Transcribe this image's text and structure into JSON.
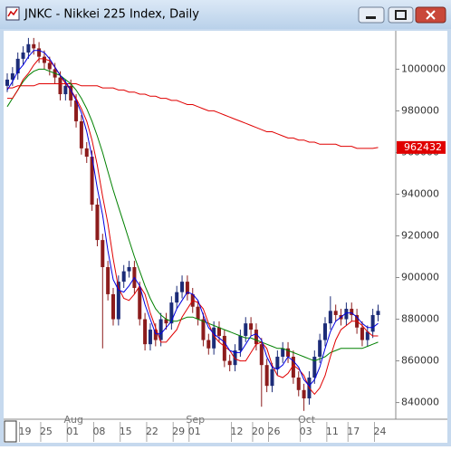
{
  "chart_data": {
    "type": "candlestick",
    "title": "JNKC - Nikkei 225 Index, Daily",
    "categories": [
      null,
      null,
      null,
      "19",
      null,
      null,
      null,
      "25",
      null,
      null,
      null,
      null,
      "01",
      null,
      null,
      null,
      null,
      "08",
      null,
      null,
      null,
      null,
      "15",
      null,
      null,
      null,
      null,
      "22",
      null,
      null,
      null,
      null,
      "29",
      null,
      null,
      "01",
      null,
      null,
      null,
      null,
      null,
      null,
      null,
      "12",
      null,
      null,
      null,
      "20",
      null,
      null,
      "26",
      null,
      null,
      null,
      null,
      null,
      "03",
      null,
      null,
      null,
      null,
      "11",
      null,
      null,
      null,
      "17",
      null,
      null,
      null,
      null,
      "24"
    ],
    "months": [
      null,
      null,
      null,
      null,
      null,
      null,
      null,
      null,
      null,
      null,
      null,
      null,
      "Aug",
      null,
      null,
      null,
      null,
      null,
      null,
      null,
      null,
      null,
      null,
      null,
      null,
      null,
      null,
      null,
      null,
      null,
      null,
      null,
      null,
      null,
      null,
      "Sep",
      null,
      null,
      null,
      null,
      null,
      null,
      null,
      null,
      null,
      null,
      null,
      null,
      null,
      null,
      null,
      null,
      null,
      null,
      null,
      null,
      "Oct",
      null,
      null,
      null,
      null,
      null,
      null,
      null,
      null,
      null,
      null,
      null,
      null,
      null,
      null
    ],
    "open": [
      992000,
      995000,
      998000,
      1005000,
      1008000,
      1012000,
      1010000,
      1006000,
      1003000,
      1000000,
      996000,
      988000,
      992000,
      985000,
      975000,
      962000,
      958000,
      935000,
      918000,
      905000,
      892000,
      880000,
      898000,
      903000,
      905000,
      895000,
      880000,
      868000,
      875000,
      870000,
      880000,
      878000,
      888000,
      893000,
      898000,
      892000,
      886000,
      880000,
      870000,
      866000,
      876000,
      872000,
      860000,
      858000,
      865000,
      872000,
      878000,
      875000,
      868000,
      858000,
      848000,
      856000,
      862000,
      866000,
      862000,
      852000,
      846000,
      842000,
      852000,
      862000,
      870000,
      878000,
      884000,
      882000,
      880000,
      885000,
      882000,
      876000,
      870000,
      874000,
      882000
    ],
    "high": [
      998000,
      1001000,
      1008000,
      1011000,
      1015000,
      1015000,
      1013000,
      1009000,
      1006000,
      1003000,
      999000,
      995000,
      995000,
      988000,
      978000,
      965000,
      961000,
      938000,
      921000,
      908000,
      895000,
      901000,
      906000,
      908000,
      908000,
      898000,
      883000,
      878000,
      878000,
      883000,
      883000,
      891000,
      896000,
      901000,
      901000,
      895000,
      889000,
      883000,
      873000,
      879000,
      879000,
      875000,
      863000,
      868000,
      875000,
      881000,
      881000,
      878000,
      871000,
      861000,
      859000,
      865000,
      869000,
      869000,
      865000,
      855000,
      849000,
      855000,
      865000,
      873000,
      881000,
      891000,
      887000,
      885000,
      888000,
      888000,
      885000,
      879000,
      877000,
      885000,
      887000
    ],
    "low": [
      989000,
      992000,
      995000,
      1002000,
      1005000,
      1007000,
      1003000,
      1000000,
      997000,
      993000,
      985000,
      985000,
      982000,
      972000,
      959000,
      955000,
      932000,
      915000,
      866000,
      889000,
      877000,
      877000,
      895000,
      900000,
      892000,
      877000,
      865000,
      865000,
      867000,
      867000,
      875000,
      875000,
      885000,
      890000,
      889000,
      883000,
      877000,
      867000,
      863000,
      863000,
      869000,
      857000,
      855000,
      855000,
      862000,
      869000,
      872000,
      865000,
      838000,
      845000,
      845000,
      853000,
      859000,
      859000,
      849000,
      843000,
      836000,
      839000,
      849000,
      859000,
      867000,
      875000,
      879000,
      877000,
      877000,
      879000,
      873000,
      867000,
      867000,
      871000,
      879000
    ],
    "close": [
      995000,
      998000,
      1005000,
      1008000,
      1012000,
      1010000,
      1006000,
      1003000,
      1000000,
      996000,
      988000,
      992000,
      985000,
      975000,
      962000,
      958000,
      935000,
      918000,
      905000,
      892000,
      880000,
      898000,
      903000,
      905000,
      895000,
      880000,
      868000,
      875000,
      870000,
      880000,
      878000,
      888000,
      893000,
      898000,
      892000,
      886000,
      880000,
      870000,
      866000,
      876000,
      872000,
      860000,
      858000,
      865000,
      872000,
      878000,
      875000,
      868000,
      858000,
      848000,
      856000,
      862000,
      866000,
      862000,
      852000,
      846000,
      842000,
      852000,
      862000,
      870000,
      878000,
      884000,
      882000,
      880000,
      885000,
      882000,
      876000,
      870000,
      874000,
      882000,
      884000
    ],
    "up_color": "#1c2c78",
    "down_color": "#8c1c1c",
    "lines": [
      {
        "color": "#e00000",
        "values": [
          991000,
          991000,
          992000,
          992000,
          992000,
          992000,
          993000,
          993000,
          993000,
          993000,
          993000,
          993000,
          993000,
          993000,
          992000,
          992000,
          992000,
          992000,
          991000,
          991000,
          991000,
          990000,
          990000,
          989000,
          989000,
          988000,
          988000,
          987000,
          987000,
          986000,
          986000,
          985000,
          985000,
          984000,
          983000,
          983000,
          982000,
          981000,
          980000,
          980000,
          979000,
          978000,
          977000,
          976000,
          975000,
          974000,
          973000,
          972000,
          971000,
          970000,
          970000,
          969000,
          968000,
          967000,
          967000,
          966000,
          966000,
          965000,
          965000,
          964000,
          964000,
          964000,
          964000,
          963000,
          963000,
          963000,
          962000,
          962000,
          962000,
          962000,
          962432
        ]
      },
      {
        "color": "#008000",
        "values": [
          982000,
          986000,
          990000,
          994000,
          997000,
          999000,
          1000000,
          1000000,
          999000,
          998000,
          997000,
          995000,
          993000,
          990000,
          986000,
          981000,
          975000,
          968000,
          960000,
          951000,
          942000,
          934000,
          926000,
          918000,
          910000,
          903000,
          896000,
          890000,
          885000,
          882000,
          880000,
          879000,
          879000,
          880000,
          881000,
          881000,
          880000,
          879000,
          878000,
          877000,
          876000,
          875000,
          874000,
          873000,
          872000,
          871000,
          871000,
          870000,
          869000,
          868000,
          867000,
          866000,
          866000,
          865000,
          864000,
          863000,
          862000,
          861000,
          860000,
          861000,
          862000,
          864000,
          865000,
          866000,
          866000,
          866000,
          866000,
          866000,
          867000,
          868000,
          869000
        ]
      },
      {
        "color": "#e00000",
        "values": [
          986000,
          986000,
          990000,
          995000,
          998000,
          1002000,
          1005000,
          1005000,
          1004000,
          1001000,
          997000,
          993000,
          990000,
          986000,
          981000,
          975000,
          966000,
          954000,
          939000,
          926000,
          909000,
          895000,
          890000,
          889000,
          892000,
          896000,
          892000,
          883000,
          876000,
          869000,
          869000,
          872000,
          875000,
          881000,
          885000,
          889000,
          888000,
          885000,
          878000,
          872000,
          869000,
          867000,
          865000,
          861000,
          860000,
          860000,
          864000,
          868000,
          869000,
          866000,
          858000,
          853000,
          852000,
          854000,
          858000,
          856000,
          853000,
          847000,
          844000,
          847000,
          853000,
          862000,
          870000,
          875000,
          877000,
          879000,
          879000,
          877000,
          874000,
          872000,
          872000
        ]
      },
      {
        "color": "#0000e0",
        "values": [
          990000,
          994000,
          999000,
          1002000,
          1006000,
          1009000,
          1009000,
          1008000,
          1005000,
          1001000,
          997000,
          994000,
          990000,
          985000,
          979000,
          970000,
          958000,
          943000,
          930000,
          913000,
          899000,
          894000,
          893000,
          896000,
          900000,
          896000,
          887000,
          880000,
          873000,
          873000,
          876000,
          879000,
          885000,
          889000,
          893000,
          892000,
          889000,
          882000,
          876000,
          873000,
          871000,
          869000,
          865000,
          864000,
          864000,
          868000,
          872000,
          873000,
          870000,
          862000,
          857000,
          856000,
          858000,
          862000,
          860000,
          857000,
          851000,
          848000,
          851000,
          857000,
          866000,
          874000,
          879000,
          881000,
          883000,
          883000,
          881000,
          878000,
          876000,
          876000,
          878000
        ]
      }
    ],
    "last_price": 962432,
    "last_price_color": "#e00000",
    "ylim": [
      832000,
      1018000
    ],
    "yticks": [
      840000,
      860000,
      880000,
      900000,
      920000,
      940000,
      960000,
      980000,
      1000000
    ]
  }
}
